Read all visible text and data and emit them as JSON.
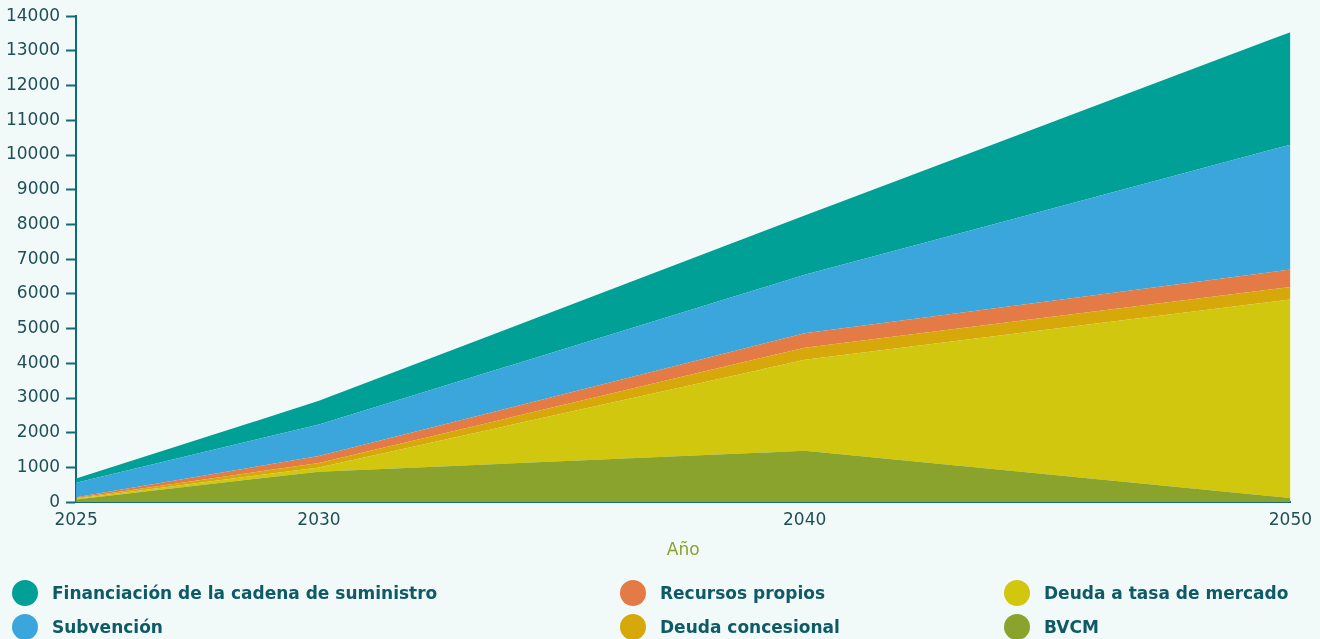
{
  "chart_data": {
    "type": "area",
    "stacked": true,
    "xlabel": "Año",
    "x": [
      2025,
      2030,
      2040,
      2050
    ],
    "xlim": [
      2025,
      2050
    ],
    "xticks": [
      2025,
      2030,
      2040,
      2050
    ],
    "ylim": [
      0,
      14000
    ],
    "yticks": [
      0,
      1000,
      2000,
      3000,
      4000,
      5000,
      6000,
      7000,
      8000,
      9000,
      10000,
      11000,
      12000,
      13000,
      14000
    ],
    "grid": false,
    "legend": "bottom",
    "marker": "none",
    "series": [
      {
        "name": "BVCM",
        "color": "#89a32c",
        "values": [
          80,
          880,
          1480,
          120
        ]
      },
      {
        "name": "Deuda a tasa de mercado",
        "color": "#d0c70e",
        "values": [
          20,
          120,
          2620,
          5720
        ]
      },
      {
        "name": "Deuda concesional",
        "color": "#d6a80a",
        "values": [
          20,
          130,
          350,
          360
        ]
      },
      {
        "name": "Recursos propios",
        "color": "#e47a45",
        "values": [
          20,
          200,
          420,
          500
        ]
      },
      {
        "name": "Subvención",
        "color": "#3ba6dc",
        "values": [
          420,
          910,
          1680,
          3600
        ]
      },
      {
        "name": "Financiación de la cadena de suministro",
        "color": "#00a096",
        "values": [
          120,
          680,
          1710,
          3240
        ]
      }
    ]
  }
}
